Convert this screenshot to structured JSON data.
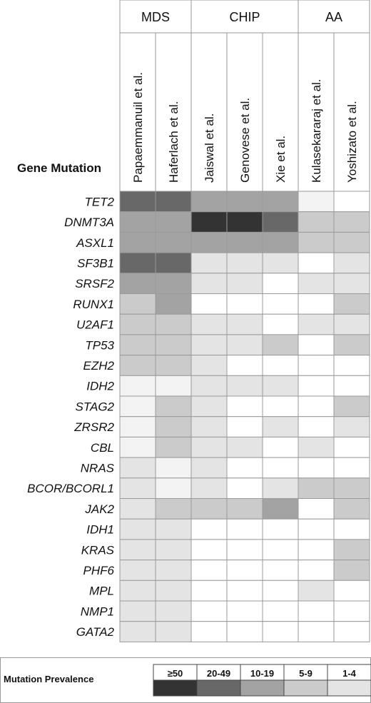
{
  "chart_data": {
    "type": "heatmap",
    "row_header": "Gene Mutation",
    "groups": [
      {
        "label": "MDS",
        "studies": [
          "Papaemmanuil et al.",
          "Haferlach et al."
        ]
      },
      {
        "label": "CHIP",
        "studies": [
          "Jaiswal et al.",
          "Genovese et al.",
          "Xie et al."
        ]
      },
      {
        "label": "AA",
        "studies": [
          "Kulasekararaj et al.",
          "Yoshizato et al."
        ]
      }
    ],
    "genes": [
      "TET2",
      "DNMT3A",
      "ASXL1",
      "SF3B1",
      "SRSF2",
      "RUNX1",
      "U2AF1",
      "TP53",
      "EZH2",
      "IDH2",
      "STAG2",
      "ZRSR2",
      "CBL",
      "NRAS",
      "BCOR/BCORL1",
      "JAK2",
      "IDH1",
      "KRAS",
      "PHF6",
      "MPL",
      "NMP1",
      "GATA2"
    ],
    "category_scale": "0 = not shown/none, 1 = lightest band, 2 = 1-4, 3 = 5-9, 4 = 10-19, 5 = 20-49, 6 = >=50",
    "levels": [
      [
        5,
        5,
        4,
        4,
        4,
        1,
        0
      ],
      [
        4,
        4,
        6,
        6,
        5,
        3,
        3
      ],
      [
        4,
        4,
        4,
        4,
        4,
        3,
        3
      ],
      [
        5,
        5,
        2,
        2,
        2,
        0,
        2
      ],
      [
        4,
        4,
        2,
        2,
        0,
        2,
        2
      ],
      [
        3,
        4,
        0,
        0,
        0,
        0,
        3
      ],
      [
        3,
        3,
        2,
        2,
        0,
        2,
        2
      ],
      [
        3,
        3,
        2,
        2,
        3,
        0,
        3
      ],
      [
        3,
        3,
        2,
        0,
        0,
        0,
        0
      ],
      [
        1,
        1,
        2,
        2,
        2,
        0,
        0
      ],
      [
        1,
        3,
        2,
        0,
        0,
        0,
        3
      ],
      [
        1,
        3,
        2,
        0,
        2,
        0,
        2
      ],
      [
        1,
        3,
        2,
        2,
        0,
        2,
        0
      ],
      [
        2,
        1,
        2,
        0,
        0,
        0,
        0
      ],
      [
        2,
        1,
        2,
        0,
        2,
        3,
        3
      ],
      [
        2,
        3,
        3,
        3,
        4,
        0,
        3
      ],
      [
        2,
        2,
        0,
        0,
        0,
        0,
        0
      ],
      [
        2,
        2,
        0,
        0,
        0,
        0,
        3
      ],
      [
        2,
        2,
        0,
        0,
        0,
        0,
        3
      ],
      [
        2,
        2,
        0,
        0,
        0,
        2,
        0
      ],
      [
        2,
        2,
        0,
        0,
        0,
        0,
        0
      ],
      [
        2,
        2,
        0,
        0,
        0,
        0,
        0
      ]
    ],
    "legend": {
      "title": "Mutation Prevalence",
      "items": [
        {
          "label": "≥50",
          "level": 6
        },
        {
          "label": "20-49",
          "level": 5
        },
        {
          "label": "10-19",
          "level": 4
        },
        {
          "label": "5-9",
          "level": 3
        },
        {
          "label": "1-4",
          "level": 2
        }
      ]
    }
  },
  "colors": {
    "level_0": "#ffffff",
    "level_1": "#f3f3f3",
    "level_2": "#e4e4e4",
    "level_3": "#cbcbcb",
    "level_4": "#a3a3a3",
    "level_5": "#686868",
    "level_6": "#333333",
    "grid": "#9a9a9a",
    "text": "#111111"
  }
}
